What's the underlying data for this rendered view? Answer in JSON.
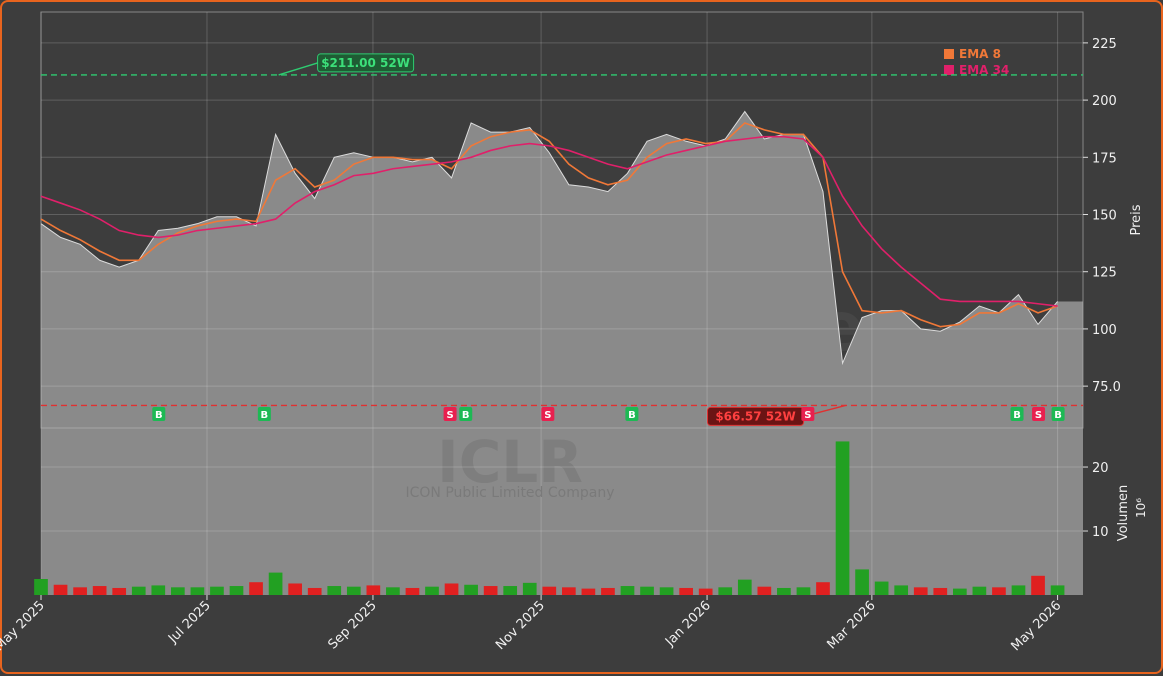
{
  "chart_data": [
    {
      "type": "line",
      "title": "ICLR",
      "subtitle": "ICON Public Limited Company",
      "watermark": "forexsignale.trade",
      "y_label": "Preis",
      "x": [
        0,
        1,
        2,
        3,
        4,
        5,
        6,
        7,
        8,
        9,
        10,
        11,
        12,
        13,
        14,
        15,
        16,
        17,
        18,
        19,
        20,
        21,
        22,
        23,
        24,
        25,
        26,
        27,
        28,
        29,
        30,
        31,
        32,
        33,
        34,
        35,
        36,
        37,
        38,
        39,
        40,
        41,
        42,
        43,
        44,
        45,
        46,
        47,
        48,
        49,
        50,
        51,
        52
      ],
      "xlim": [
        0,
        53.3
      ],
      "xticks": [
        {
          "value": 0,
          "label": "May 2025"
        },
        {
          "value": 8.49,
          "label": "Jul 2025"
        },
        {
          "value": 16.98,
          "label": "Sep 2025"
        },
        {
          "value": 25.58,
          "label": "Nov 2025"
        },
        {
          "value": 34.07,
          "label": "Jan 2026"
        },
        {
          "value": 42.5,
          "label": "Mar 2026"
        },
        {
          "value": 52,
          "label": "May 2026"
        }
      ],
      "ylim": [
        56.7,
        238.5
      ],
      "yticks": [
        {
          "value": 75,
          "label": "75.0"
        },
        100,
        125,
        150,
        175,
        200,
        225
      ],
      "grid": true,
      "color": "#8a8a8a",
      "values": [
        146,
        140,
        137,
        130,
        127,
        130,
        143,
        144,
        146,
        149,
        149,
        145,
        185,
        168,
        157,
        175,
        177,
        175,
        175,
        173,
        175,
        166,
        190,
        186,
        186,
        188,
        177,
        163,
        162,
        160,
        168,
        182,
        185,
        182,
        180,
        183,
        195,
        183,
        185,
        185,
        160,
        85,
        105,
        108,
        108,
        100,
        99,
        103,
        110,
        107,
        115,
        102,
        112
      ],
      "series": [
        {
          "name": "EMA 8",
          "color": "#f07838",
          "values": [
            148,
            143,
            139,
            134,
            130,
            130,
            137,
            142,
            145,
            147,
            148,
            147,
            165,
            170,
            162,
            165,
            172,
            175,
            175,
            174,
            174,
            170,
            180,
            184,
            186,
            187,
            182,
            172,
            166,
            163,
            165,
            175,
            181,
            183,
            181,
            182,
            190,
            187,
            185,
            185,
            175,
            125,
            108,
            107,
            108,
            104,
            101,
            102,
            107,
            107,
            111,
            107,
            110
          ]
        },
        {
          "name": "EMA 34",
          "color": "#e0206a",
          "values": [
            158,
            155,
            152,
            148,
            143,
            141,
            140,
            141,
            143,
            144,
            145,
            146,
            148,
            155,
            160,
            163,
            167,
            168,
            170,
            171,
            172,
            173,
            175,
            178,
            180,
            181,
            180,
            178,
            175,
            172,
            170,
            173,
            176,
            178,
            180,
            182,
            183,
            184,
            184,
            183,
            175,
            158,
            145,
            135,
            127,
            120,
            113,
            112,
            112,
            112,
            112,
            111,
            110
          ]
        }
      ],
      "legend": "upper right",
      "annotations": [
        {
          "label": "$211.00 52W",
          "value": 211,
          "x": 12,
          "color": "#2ecc71"
        },
        {
          "label": "$66.57 52W",
          "value": 66.57,
          "x": 41,
          "color": "#e03030"
        }
      ],
      "signals": [
        {
          "x": 6,
          "label": "B"
        },
        {
          "x": 11.4,
          "label": "B"
        },
        {
          "x": 20.9,
          "label": "S"
        },
        {
          "x": 21.7,
          "label": "B"
        },
        {
          "x": 25.9,
          "label": "S"
        },
        {
          "x": 30.2,
          "label": "B"
        },
        {
          "x": 39.2,
          "label": "S"
        },
        {
          "x": 49.9,
          "label": "B"
        },
        {
          "x": 51,
          "label": "S"
        },
        {
          "x": 52,
          "label": "B"
        }
      ]
    },
    {
      "type": "bar",
      "y_label": "Volumen",
      "y_unit": "10⁶",
      "x": [
        0,
        1,
        2,
        3,
        4,
        5,
        6,
        7,
        8,
        9,
        10,
        11,
        12,
        13,
        14,
        15,
        16,
        17,
        18,
        19,
        20,
        21,
        22,
        23,
        24,
        25,
        26,
        27,
        28,
        29,
        30,
        31,
        32,
        33,
        34,
        35,
        36,
        37,
        38,
        39,
        40,
        41,
        42,
        43,
        44,
        45,
        46,
        47,
        48,
        49,
        50,
        51,
        52
      ],
      "xlim": [
        0,
        53.3
      ],
      "ylim": [
        0,
        26.1
      ],
      "yticks": [
        10,
        20
      ],
      "values": [
        2.5,
        1.6,
        1.2,
        1.4,
        1.1,
        1.3,
        1.5,
        1.2,
        1.2,
        1.3,
        1.4,
        2.0,
        3.5,
        1.8,
        1.1,
        1.4,
        1.3,
        1.5,
        1.2,
        1.1,
        1.3,
        1.8,
        1.6,
        1.4,
        1.4,
        1.9,
        1.3,
        1.2,
        1.0,
        1.1,
        1.4,
        1.3,
        1.2,
        1.1,
        1.0,
        1.2,
        2.4,
        1.3,
        1.1,
        1.2,
        2.0,
        24,
        4.0,
        2.1,
        1.5,
        1.2,
        1.1,
        1.0,
        1.3,
        1.2,
        1.5,
        3.0,
        1.5
      ],
      "colors": [
        "#22a022",
        "#e02020",
        "#e02020",
        "#e02020",
        "#e02020",
        "#22a022",
        "#22a022",
        "#22a022",
        "#22a022",
        "#22a022",
        "#22a022",
        "#e02020",
        "#22a022",
        "#e02020",
        "#e02020",
        "#22a022",
        "#22a022",
        "#e02020",
        "#22a022",
        "#e02020",
        "#22a022",
        "#e02020",
        "#22a022",
        "#e02020",
        "#22a022",
        "#22a022",
        "#e02020",
        "#e02020",
        "#e02020",
        "#e02020",
        "#22a022",
        "#22a022",
        "#22a022",
        "#e02020",
        "#e02020",
        "#22a022",
        "#22a022",
        "#e02020",
        "#22a022",
        "#22a022",
        "#e02020",
        "#22a022",
        "#22a022",
        "#22a022",
        "#22a022",
        "#e02020",
        "#e02020",
        "#22a022",
        "#22a022",
        "#e02020",
        "#22a022",
        "#e02020",
        "#22a022"
      ]
    }
  ]
}
